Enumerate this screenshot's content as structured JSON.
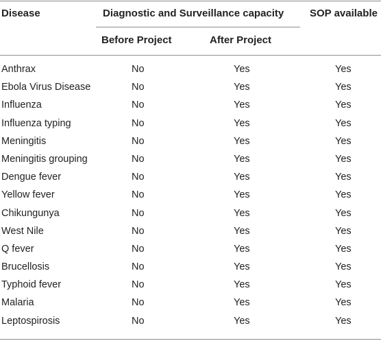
{
  "header": {
    "disease": "Disease",
    "group": "Diagnostic and Surveillance capacity",
    "before": "Before Project",
    "after": "After Project",
    "sop": "SOP available"
  },
  "rows": [
    {
      "disease": "Anthrax",
      "before": "No",
      "after": "Yes",
      "sop": "Yes"
    },
    {
      "disease": "Ebola Virus Disease",
      "before": "No",
      "after": "Yes",
      "sop": "Yes"
    },
    {
      "disease": "Influenza",
      "before": "No",
      "after": "Yes",
      "sop": "Yes"
    },
    {
      "disease": "Influenza typing",
      "before": "No",
      "after": "Yes",
      "sop": "Yes"
    },
    {
      "disease": "Meningitis",
      "before": "No",
      "after": "Yes",
      "sop": "Yes"
    },
    {
      "disease": "Meningitis grouping",
      "before": "No",
      "after": "Yes",
      "sop": "Yes"
    },
    {
      "disease": "Dengue fever",
      "before": "No",
      "after": "Yes",
      "sop": "Yes"
    },
    {
      "disease": "Yellow fever",
      "before": "No",
      "after": "Yes",
      "sop": "Yes"
    },
    {
      "disease": "Chikungunya",
      "before": "No",
      "after": "Yes",
      "sop": "Yes"
    },
    {
      "disease": "West Nile",
      "before": "No",
      "after": "Yes",
      "sop": "Yes"
    },
    {
      "disease": "Q fever",
      "before": "No",
      "after": "Yes",
      "sop": "Yes"
    },
    {
      "disease": "Brucellosis",
      "before": "No",
      "after": "Yes",
      "sop": "Yes"
    },
    {
      "disease": "Typhoid fever",
      "before": "No",
      "after": "Yes",
      "sop": "Yes"
    },
    {
      "disease": "Malaria",
      "before": "No",
      "after": "Yes",
      "sop": "Yes"
    },
    {
      "disease": "Leptospirosis",
      "before": "No",
      "after": "Yes",
      "sop": "Yes"
    }
  ]
}
